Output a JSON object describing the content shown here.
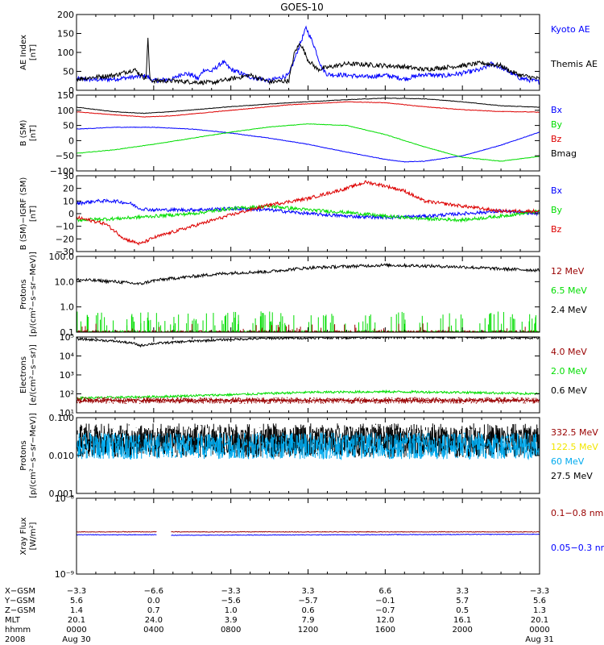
{
  "title": "GOES-10",
  "colors": {
    "black": "#000000",
    "blue": "#0000ff",
    "red": "#dd0000",
    "green": "#00dd00",
    "darkred": "#990000",
    "yellow": "#f2e600",
    "cyan": "#00aaee"
  },
  "panels": [
    {
      "id": "ae",
      "ylabel": [
        "AE Index",
        "[nT]"
      ],
      "yticks": [
        "0",
        "50",
        "100",
        "150",
        "200"
      ],
      "legend": [
        {
          "text": "Kyoto AE",
          "color": "blue"
        },
        {
          "text": "Themis AE",
          "color": "black"
        }
      ]
    },
    {
      "id": "b",
      "ylabel": [
        "B (SM)",
        "[nT]"
      ],
      "yticks": [
        "−100",
        "−50",
        "0",
        "50",
        "100",
        "150"
      ],
      "legend": [
        {
          "text": "Bx",
          "color": "blue"
        },
        {
          "text": "By",
          "color": "green"
        },
        {
          "text": "Bz",
          "color": "red"
        },
        {
          "text": "Bmag",
          "color": "black"
        }
      ]
    },
    {
      "id": "db",
      "ylabel": [
        "B (SM)−IGRF (SM)",
        "[nT]"
      ],
      "yticks": [
        "−30",
        "−20",
        "−10",
        "0",
        "10",
        "20",
        "30"
      ],
      "legend": [
        {
          "text": "Bx",
          "color": "blue"
        },
        {
          "text": "By",
          "color": "green"
        },
        {
          "text": "Bz",
          "color": "red"
        }
      ]
    },
    {
      "id": "hp",
      "ylabel": [
        "Protons",
        "[p/(cm²−s−sr−MeV)]"
      ],
      "yticks": [
        "0.1",
        "1.0",
        "10.0",
        "100.0"
      ],
      "legend": [
        {
          "text": "12 MeV",
          "color": "darkred"
        },
        {
          "text": "6.5 MeV",
          "color": "green"
        },
        {
          "text": "2.4 MeV",
          "color": "black"
        }
      ]
    },
    {
      "id": "el",
      "ylabel": [
        "Electrons",
        "[e/(cm²−s−sr)]"
      ],
      "yticks": [
        "10¹",
        "10²",
        "10³",
        "10⁴",
        "10⁵"
      ],
      "legend": [
        {
          "text": "4.0 MeV",
          "color": "darkred"
        },
        {
          "text": "2.0 MeV",
          "color": "green"
        },
        {
          "text": "0.6 MeV",
          "color": "black"
        }
      ]
    },
    {
      "id": "lp",
      "ylabel": [
        "Protons",
        "[p/(cm²−s−sr−MeV)]"
      ],
      "yticks": [
        "0.001",
        "0.010",
        "0.100"
      ],
      "legend": [
        {
          "text": "332.5 MeV",
          "color": "darkred"
        },
        {
          "text": "122.5 MeV",
          "color": "yellow"
        },
        {
          "text": "60 MeV",
          "color": "cyan"
        },
        {
          "text": "27.5 MeV",
          "color": "black"
        }
      ]
    },
    {
      "id": "xr",
      "ylabel": [
        "Xray Flux",
        "[W/m²]"
      ],
      "yticks": [
        "10⁻⁹",
        "10⁻⁸"
      ],
      "legend": [
        {
          "text": "0.1−0.8 nm",
          "color": "darkred"
        },
        {
          "text": "0.05−0.3 nm",
          "color": "blue"
        }
      ]
    }
  ],
  "axis_table": {
    "labels": [
      "X−GSM",
      "Y−GSM",
      "Z−GSM",
      "MLT",
      "hhmm",
      "2008"
    ],
    "columns": [
      [
        "−3.3",
        "5.6",
        "1.4",
        "20.1",
        "0000",
        "Aug 30"
      ],
      [
        "−6.6",
        "0.0",
        "0.7",
        "24.0",
        "0400",
        ""
      ],
      [
        "−3.3",
        "−5.6",
        "1.0",
        "3.9",
        "0800",
        ""
      ],
      [
        "3.3",
        "−5.7",
        "0.6",
        "7.9",
        "1200",
        ""
      ],
      [
        "6.6",
        "−0.1",
        "−0.7",
        "12.0",
        "1600",
        ""
      ],
      [
        "3.3",
        "5.7",
        "0.5",
        "16.1",
        "2000",
        ""
      ],
      [
        "−3.3",
        "5.6",
        "1.3",
        "20.1",
        "0000",
        "Aug 31"
      ]
    ]
  },
  "chart_data": [
    {
      "type": "line",
      "panel": "ae",
      "ylabel": "AE Index [nT]",
      "ylim": [
        0,
        200
      ],
      "x_unit": "hours since 2008-08-30 00:00",
      "series": [
        {
          "name": "Kyoto AE",
          "color": "blue",
          "x": [
            0,
            1,
            2,
            3,
            3.6,
            4,
            5,
            5.5,
            6,
            6.3,
            6.6,
            7,
            7.6,
            8,
            9,
            10,
            11,
            11.5,
            11.9,
            12.3,
            12.7,
            13,
            14,
            15,
            16,
            17,
            18,
            19,
            20,
            21,
            21.5,
            22,
            23,
            24
          ],
          "y": [
            30,
            28,
            30,
            35,
            38,
            25,
            30,
            45,
            40,
            30,
            55,
            50,
            75,
            55,
            35,
            25,
            40,
            110,
            165,
            120,
            60,
            42,
            40,
            35,
            40,
            30,
            42,
            38,
            45,
            55,
            70,
            60,
            32,
            22
          ]
        },
        {
          "name": "Themis AE",
          "color": "black",
          "x": [
            0,
            1,
            2,
            3,
            3.6,
            3.7,
            3.8,
            4,
            5,
            6,
            7,
            8,
            9,
            10,
            11,
            11.3,
            11.6,
            12,
            12.5,
            13,
            14,
            15,
            16,
            17,
            18,
            19,
            20,
            21,
            22,
            22.5,
            23,
            24
          ],
          "y": [
            30,
            35,
            40,
            55,
            30,
            140,
            28,
            25,
            25,
            22,
            20,
            30,
            40,
            22,
            25,
            100,
            125,
            80,
            55,
            60,
            70,
            68,
            65,
            62,
            55,
            60,
            65,
            72,
            65,
            50,
            40,
            30
          ]
        }
      ]
    },
    {
      "type": "line",
      "panel": "b",
      "ylabel": "B (SM) [nT]",
      "ylim": [
        -100,
        150
      ],
      "x_unit": "hours since 2008-08-30 00:00",
      "series": [
        {
          "name": "Bx",
          "color": "blue",
          "x": [
            0,
            2,
            4,
            6,
            8,
            10,
            12,
            14,
            16,
            17,
            18,
            20,
            22,
            24
          ],
          "y": [
            38,
            44,
            44,
            38,
            25,
            8,
            -12,
            -38,
            -62,
            -70,
            -68,
            -50,
            -15,
            28
          ]
        },
        {
          "name": "By",
          "color": "green",
          "x": [
            0,
            2,
            4,
            6,
            8,
            10,
            12,
            14,
            16,
            18,
            20,
            22,
            24
          ],
          "y": [
            -42,
            -30,
            -12,
            8,
            28,
            45,
            55,
            50,
            20,
            -20,
            -55,
            -68,
            -52
          ]
        },
        {
          "name": "Bz",
          "color": "red",
          "x": [
            0,
            2,
            3.5,
            5,
            8,
            11,
            14,
            16,
            18,
            20,
            22,
            24
          ],
          "y": [
            95,
            85,
            78,
            82,
            100,
            118,
            128,
            125,
            112,
            102,
            96,
            94
          ]
        },
        {
          "name": "Bmag",
          "color": "black",
          "x": [
            0,
            2,
            3.5,
            5,
            8,
            11,
            14,
            16,
            18,
            20,
            22,
            24
          ],
          "y": [
            110,
            95,
            90,
            96,
            112,
            125,
            135,
            140,
            138,
            128,
            115,
            110
          ]
        }
      ]
    },
    {
      "type": "line",
      "panel": "db",
      "ylabel": "B (SM)−IGRF (SM) [nT]",
      "ylim": [
        -30,
        30
      ],
      "x_unit": "hours since 2008-08-30 00:00",
      "series": [
        {
          "name": "Bx",
          "color": "blue",
          "x": [
            0,
            1,
            2,
            2.8,
            3.3,
            4,
            6,
            8,
            10,
            12,
            14,
            16,
            18,
            20,
            22,
            24
          ],
          "y": [
            8,
            10,
            10,
            8,
            4,
            3,
            3,
            4,
            3,
            0,
            -2,
            -3,
            -2,
            0,
            2,
            0
          ]
        },
        {
          "name": "By",
          "color": "green",
          "x": [
            0,
            2,
            4,
            6,
            8,
            10,
            12,
            14,
            16,
            18,
            20,
            22,
            24
          ],
          "y": [
            -5,
            -4,
            -2,
            0,
            4,
            6,
            3,
            1,
            -2,
            -4,
            -5,
            -2,
            2
          ]
        },
        {
          "name": "Bz",
          "color": "red",
          "x": [
            0,
            1.5,
            2.5,
            3.3,
            4,
            6,
            8,
            10,
            12,
            14,
            15,
            16,
            17,
            18,
            20,
            22,
            24
          ],
          "y": [
            -3,
            -8,
            -20,
            -24,
            -19,
            -10,
            -1,
            7,
            12,
            20,
            25,
            22,
            18,
            10,
            6,
            2,
            2
          ]
        }
      ]
    },
    {
      "type": "line",
      "panel": "hp",
      "ylabel": "Protons [p/(cm²−s−sr−MeV)]",
      "log": true,
      "ylim": [
        0.1,
        100
      ],
      "x_unit": "hours since 2008-08-30 00:00",
      "series": [
        {
          "name": "2.4 MeV",
          "color": "black",
          "x": [
            0,
            2,
            3.3,
            4,
            6,
            8,
            10,
            12,
            14,
            16,
            18,
            20,
            22,
            24
          ],
          "y": [
            12,
            10,
            8,
            11,
            16,
            22,
            25,
            35,
            40,
            45,
            42,
            38,
            32,
            28
          ]
        },
        {
          "name": "6.5 MeV",
          "color": "green",
          "x": [
            0,
            24
          ],
          "y": [
            0.1,
            0.1
          ]
        },
        {
          "name": "12 MeV",
          "color": "darkred",
          "x": [
            0,
            24
          ],
          "y": [
            0.1,
            0.1
          ]
        }
      ]
    },
    {
      "type": "line",
      "panel": "el",
      "ylabel": "Electrons [e/(cm²−s−sr)]",
      "log": true,
      "ylim": [
        10,
        100000
      ],
      "x_unit": "hours since 2008-08-30 00:00",
      "series": [
        {
          "name": "0.6 MeV",
          "color": "black",
          "x": [
            0,
            2,
            3,
            3.3,
            4,
            6,
            8,
            10,
            12,
            16,
            20,
            24
          ],
          "y": [
            80000,
            60000,
            45000,
            35000,
            45000,
            60000,
            75000,
            85000,
            90000,
            95000,
            95000,
            90000
          ]
        },
        {
          "name": "2.0 MeV",
          "color": "green",
          "x": [
            0,
            4,
            8,
            12,
            16,
            20,
            24
          ],
          "y": [
            60,
            70,
            90,
            120,
            130,
            120,
            100
          ]
        },
        {
          "name": "4.0 MeV",
          "color": "darkred",
          "x": [
            0,
            24
          ],
          "y": [
            45,
            45
          ]
        }
      ]
    },
    {
      "type": "line",
      "panel": "lp",
      "ylabel": "Protons [p/(cm²−s−sr−MeV)]",
      "log": true,
      "ylim": [
        0.001,
        0.1
      ],
      "x_unit": "hours since 2008-08-30 00:00",
      "series": [
        {
          "name": "27.5 MeV",
          "color": "black",
          "x": [
            0,
            24
          ],
          "y": [
            0.025,
            0.025
          ]
        },
        {
          "name": "60 MeV",
          "color": "cyan",
          "x": [
            0,
            24
          ],
          "y": [
            0.018,
            0.018
          ]
        }
      ]
    },
    {
      "type": "line",
      "panel": "xr",
      "ylabel": "Xray Flux [W/m²]",
      "log": true,
      "ylim": [
        1e-09,
        1e-08
      ],
      "x_unit": "hours since 2008-08-30 00:00",
      "series": [
        {
          "name": "0.1−0.8 nm",
          "color": "darkred",
          "x": [
            0,
            4.15,
            4.9,
            24
          ],
          "y": [
            3.6e-09,
            3.6e-09,
            3.6e-09,
            3.6e-09
          ],
          "gap": [
            4.15,
            4.9
          ]
        },
        {
          "name": "0.05−0.3 nm",
          "color": "blue",
          "x": [
            0,
            4.15,
            4.9,
            24
          ],
          "y": [
            3.3e-09,
            3.3e-09,
            3.25e-09,
            3.35e-09
          ],
          "gap": [
            4.15,
            4.9
          ]
        }
      ]
    }
  ]
}
